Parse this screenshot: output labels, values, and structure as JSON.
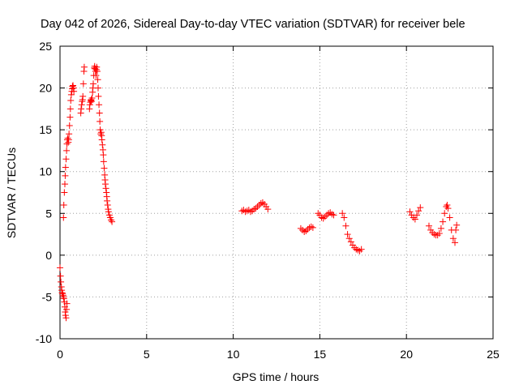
{
  "chart_data": {
    "type": "scatter",
    "title": "Day 042 of 2026, Sidereal Day-to-day VTEC variation (SDTVAR) for receiver bele",
    "xlabel": "GPS time / hours",
    "ylabel": "SDTVAR / TECUs",
    "xlim": [
      0,
      25
    ],
    "ylim": [
      -10,
      25
    ],
    "xticks": [
      0,
      5,
      10,
      15,
      20,
      25
    ],
    "yticks": [
      -10,
      -5,
      0,
      5,
      10,
      15,
      20,
      25
    ],
    "xtick_labels": [
      "0",
      "5",
      "10",
      "15",
      "20",
      "25"
    ],
    "ytick_labels": [
      "-10",
      "-5",
      "0",
      "5",
      "10",
      "15",
      "20",
      "25"
    ],
    "grid": true,
    "marker": "+",
    "series": [
      {
        "name": "SDTVAR",
        "color": "#ff0000",
        "points": [
          [
            0.0,
            -1.5
          ],
          [
            0.03,
            -2.5
          ],
          [
            0.05,
            -3.2
          ],
          [
            0.08,
            -3.8
          ],
          [
            0.1,
            -4.2
          ],
          [
            0.12,
            -4.5
          ],
          [
            0.15,
            -4.6
          ],
          [
            0.18,
            -4.8
          ],
          [
            0.2,
            -5.0
          ],
          [
            0.22,
            -5.2
          ],
          [
            0.25,
            -5.6
          ],
          [
            0.28,
            -6.2
          ],
          [
            0.3,
            -6.8
          ],
          [
            0.32,
            -7.2
          ],
          [
            0.35,
            -7.5
          ],
          [
            0.38,
            -6.5
          ],
          [
            0.4,
            -5.8
          ],
          [
            0.2,
            4.5
          ],
          [
            0.22,
            6.0
          ],
          [
            0.25,
            7.5
          ],
          [
            0.28,
            8.5
          ],
          [
            0.3,
            9.5
          ],
          [
            0.32,
            10.5
          ],
          [
            0.35,
            11.5
          ],
          [
            0.38,
            12.5
          ],
          [
            0.4,
            13.3
          ],
          [
            0.42,
            13.8
          ],
          [
            0.45,
            14.0
          ],
          [
            0.48,
            13.5
          ],
          [
            0.5,
            13.8
          ],
          [
            0.52,
            14.5
          ],
          [
            0.55,
            15.5
          ],
          [
            0.58,
            16.5
          ],
          [
            0.6,
            17.5
          ],
          [
            0.62,
            18.5
          ],
          [
            0.65,
            19.2
          ],
          [
            0.68,
            19.6
          ],
          [
            0.7,
            19.9
          ],
          [
            0.72,
            20.2
          ],
          [
            0.75,
            20.3
          ],
          [
            0.78,
            20.0
          ],
          [
            0.8,
            19.6
          ],
          [
            1.2,
            17.0
          ],
          [
            1.22,
            17.5
          ],
          [
            1.25,
            18.0
          ],
          [
            1.28,
            18.4
          ],
          [
            1.3,
            18.6
          ],
          [
            1.32,
            19.0
          ],
          [
            1.35,
            20.5
          ],
          [
            1.38,
            22.0
          ],
          [
            1.4,
            22.5
          ],
          [
            1.7,
            17.5
          ],
          [
            1.72,
            18.0
          ],
          [
            1.75,
            18.3
          ],
          [
            1.78,
            18.5
          ],
          [
            1.8,
            18.6
          ],
          [
            1.82,
            18.4
          ],
          [
            1.85,
            18.8
          ],
          [
            1.88,
            19.5
          ],
          [
            1.9,
            20.0
          ],
          [
            1.92,
            20.5
          ],
          [
            1.95,
            21.5
          ],
          [
            1.98,
            22.4
          ],
          [
            2.0,
            22.6
          ],
          [
            2.02,
            22.3
          ],
          [
            2.05,
            22.0
          ],
          [
            2.08,
            21.5
          ],
          [
            2.1,
            22.2
          ],
          [
            2.12,
            22.5
          ],
          [
            2.15,
            22.0
          ],
          [
            2.18,
            21.0
          ],
          [
            2.2,
            20.0
          ],
          [
            2.22,
            19.0
          ],
          [
            2.25,
            18.0
          ],
          [
            2.28,
            17.0
          ],
          [
            2.3,
            16.0
          ],
          [
            2.32,
            15.0
          ],
          [
            2.35,
            14.5
          ],
          [
            2.38,
            14.7
          ],
          [
            2.4,
            14.3
          ],
          [
            2.42,
            13.8
          ],
          [
            2.45,
            13.2
          ],
          [
            2.48,
            12.6
          ],
          [
            2.5,
            12.0
          ],
          [
            2.52,
            11.2
          ],
          [
            2.55,
            10.4
          ],
          [
            2.58,
            9.6
          ],
          [
            2.6,
            9.0
          ],
          [
            2.62,
            8.5
          ],
          [
            2.65,
            8.0
          ],
          [
            2.68,
            7.5
          ],
          [
            2.7,
            7.0
          ],
          [
            2.72,
            6.5
          ],
          [
            2.75,
            6.0
          ],
          [
            2.78,
            5.5
          ],
          [
            2.8,
            5.2
          ],
          [
            2.85,
            4.8
          ],
          [
            2.9,
            4.5
          ],
          [
            2.95,
            4.2
          ],
          [
            3.0,
            4.0
          ],
          [
            10.5,
            5.3
          ],
          [
            10.6,
            5.4
          ],
          [
            10.7,
            5.2
          ],
          [
            10.8,
            5.3
          ],
          [
            10.9,
            5.4
          ],
          [
            11.0,
            5.2
          ],
          [
            11.1,
            5.3
          ],
          [
            11.2,
            5.5
          ],
          [
            11.3,
            5.6
          ],
          [
            11.4,
            5.8
          ],
          [
            11.5,
            6.0
          ],
          [
            11.6,
            6.2
          ],
          [
            11.7,
            6.3
          ],
          [
            11.8,
            6.1
          ],
          [
            11.9,
            5.8
          ],
          [
            12.0,
            5.5
          ],
          [
            13.9,
            3.2
          ],
          [
            14.0,
            3.0
          ],
          [
            14.1,
            2.8
          ],
          [
            14.2,
            2.9
          ],
          [
            14.3,
            3.1
          ],
          [
            14.4,
            3.3
          ],
          [
            14.5,
            3.4
          ],
          [
            14.6,
            3.3
          ],
          [
            14.9,
            5.0
          ],
          [
            15.0,
            4.8
          ],
          [
            15.1,
            4.5
          ],
          [
            15.2,
            4.4
          ],
          [
            15.3,
            4.6
          ],
          [
            15.4,
            4.8
          ],
          [
            15.5,
            5.0
          ],
          [
            15.6,
            5.1
          ],
          [
            15.7,
            4.9
          ],
          [
            15.8,
            4.8
          ],
          [
            16.3,
            5.0
          ],
          [
            16.4,
            4.5
          ],
          [
            16.5,
            3.5
          ],
          [
            16.6,
            2.5
          ],
          [
            16.7,
            2.0
          ],
          [
            16.8,
            1.6
          ],
          [
            16.9,
            1.2
          ],
          [
            17.0,
            0.9
          ],
          [
            17.1,
            0.7
          ],
          [
            17.2,
            0.6
          ],
          [
            17.3,
            0.5
          ],
          [
            17.4,
            0.7
          ],
          [
            20.2,
            5.2
          ],
          [
            20.3,
            4.8
          ],
          [
            20.4,
            4.5
          ],
          [
            20.5,
            4.3
          ],
          [
            20.6,
            4.8
          ],
          [
            20.7,
            5.3
          ],
          [
            20.8,
            5.7
          ],
          [
            21.3,
            3.5
          ],
          [
            21.4,
            3.0
          ],
          [
            21.5,
            2.7
          ],
          [
            21.6,
            2.5
          ],
          [
            21.7,
            2.4
          ],
          [
            21.8,
            2.4
          ],
          [
            21.9,
            2.6
          ],
          [
            22.0,
            3.2
          ],
          [
            22.1,
            4.0
          ],
          [
            22.2,
            5.0
          ],
          [
            22.3,
            5.8
          ],
          [
            22.35,
            6.0
          ],
          [
            22.4,
            5.6
          ],
          [
            22.5,
            4.5
          ],
          [
            22.6,
            3.0
          ],
          [
            22.7,
            2.0
          ],
          [
            22.8,
            1.5
          ],
          [
            22.85,
            3.0
          ],
          [
            22.9,
            3.6
          ]
        ]
      }
    ]
  }
}
